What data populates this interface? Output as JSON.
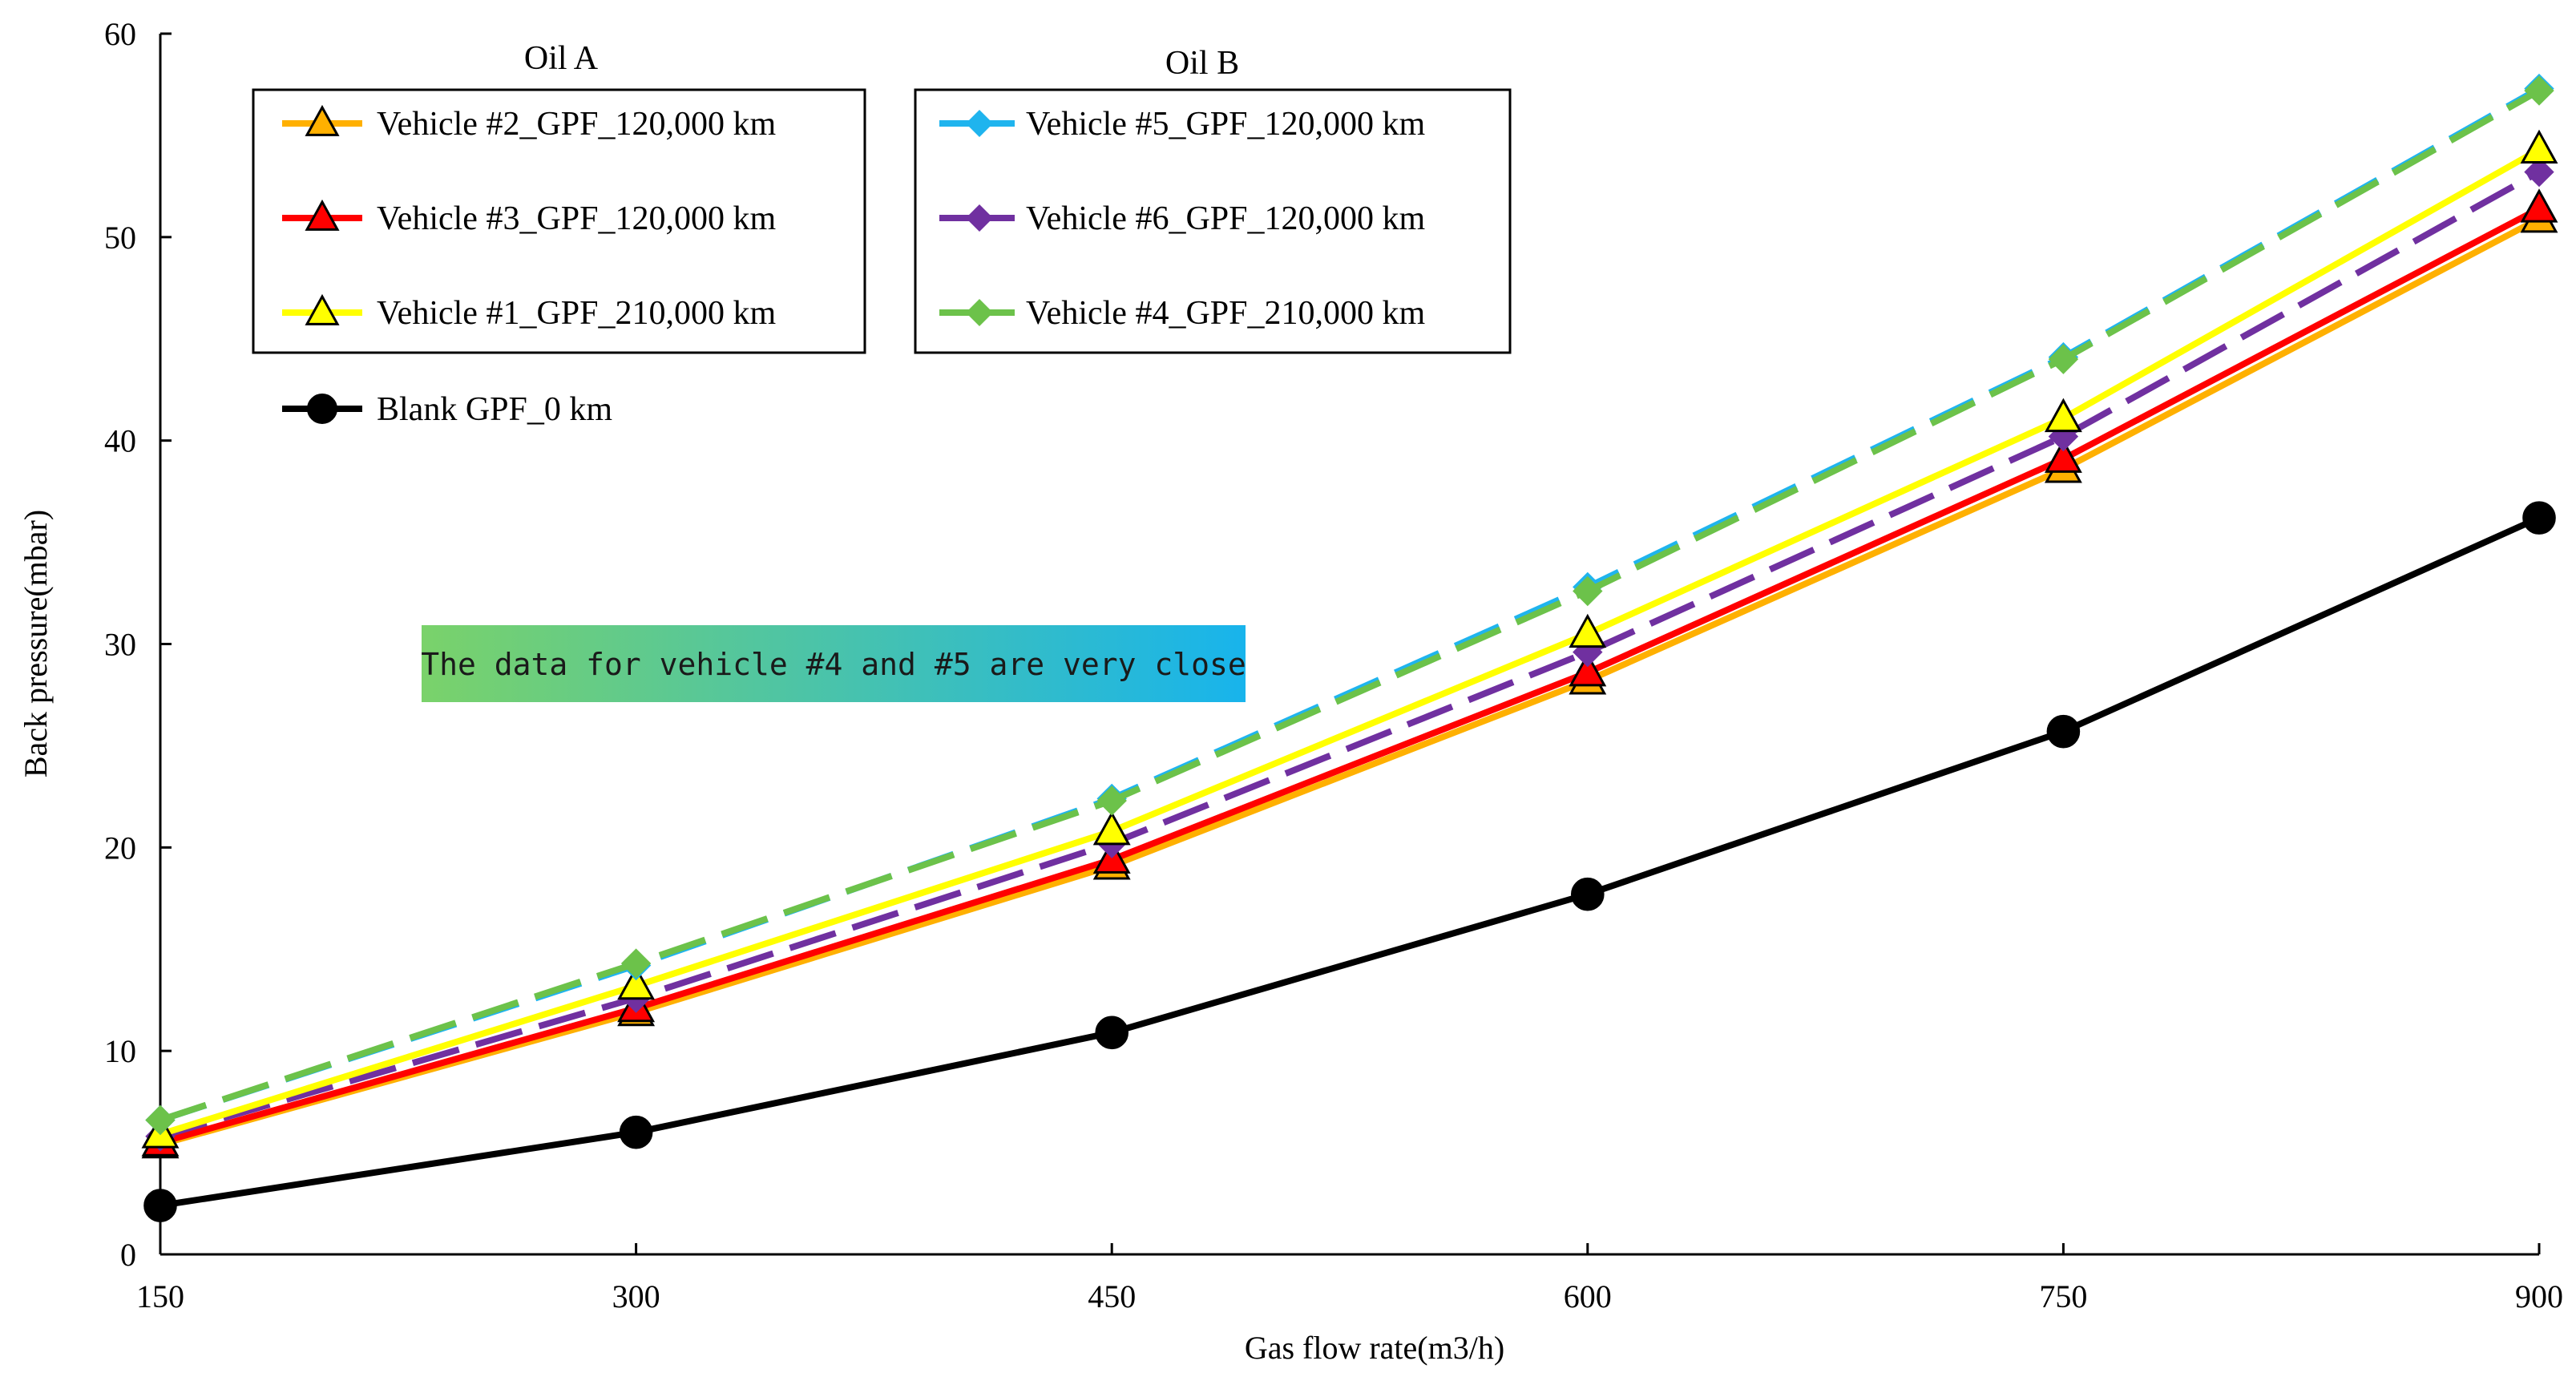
{
  "chart_data": {
    "type": "line",
    "title": "",
    "xlabel": "Gas flow rate(m3/h)",
    "ylabel": "Back pressure(mbar)",
    "x": [
      150,
      300,
      450,
      600,
      750,
      900
    ],
    "xlim": [
      150,
      900
    ],
    "ylim": [
      0,
      60
    ],
    "yticks": [
      0,
      10,
      20,
      30,
      40,
      50,
      60
    ],
    "grid": false,
    "legend_groups": [
      {
        "label": "Oil A",
        "placement": "top-left"
      },
      {
        "label": "Oil B",
        "placement": "top-center"
      }
    ],
    "series": [
      {
        "name": "Vehicle #2_GPF_120,000 km",
        "group": "Oil A",
        "color": "#FFB000",
        "marker": "triangle",
        "dash": "solid",
        "values": [
          5.4,
          11.9,
          19.1,
          28.2,
          38.6,
          50.9
        ]
      },
      {
        "name": "Vehicle #3_GPF_120,000 km",
        "group": "Oil A",
        "color": "#FF0000",
        "marker": "triangle",
        "dash": "solid",
        "values": [
          5.5,
          12.1,
          19.4,
          28.6,
          39.1,
          51.4
        ]
      },
      {
        "name": "Vehicle #1_GPF_210,000 km",
        "group": "Oil A",
        "color": "#FFFF00",
        "marker": "triangle",
        "dash": "solid",
        "values": [
          5.9,
          13.2,
          20.8,
          30.5,
          41.1,
          54.3
        ]
      },
      {
        "name": "Blank GPF_0 km",
        "group": "none",
        "color": "#000000",
        "marker": "circle",
        "dash": "solid",
        "values": [
          2.4,
          6.0,
          10.9,
          17.7,
          25.7,
          36.2
        ]
      },
      {
        "name": "Vehicle #5_GPF_120,000 km",
        "group": "Oil B",
        "color": "#1FB4EE",
        "marker": "diamond",
        "dash": "dashed",
        "values": [
          6.6,
          14.2,
          22.4,
          32.8,
          44.1,
          57.3
        ]
      },
      {
        "name": "Vehicle #6_GPF_120,000 km",
        "group": "Oil B",
        "color": "#7030A0",
        "marker": "diamond",
        "dash": "dashed",
        "values": [
          5.8,
          12.6,
          20.2,
          29.6,
          40.2,
          53.2
        ]
      },
      {
        "name": "Vehicle #4_GPF_210,000 km",
        "group": "Oil B",
        "color": "#6CC24A",
        "marker": "diamond",
        "dash": "dashed",
        "values": [
          6.6,
          14.3,
          22.3,
          32.6,
          44.0,
          57.2
        ]
      }
    ],
    "annotation": {
      "text": "The data for vehicle #4 and #5 are very close",
      "gradient_from": "#7AD26A",
      "gradient_to": "#18B4EC"
    }
  }
}
